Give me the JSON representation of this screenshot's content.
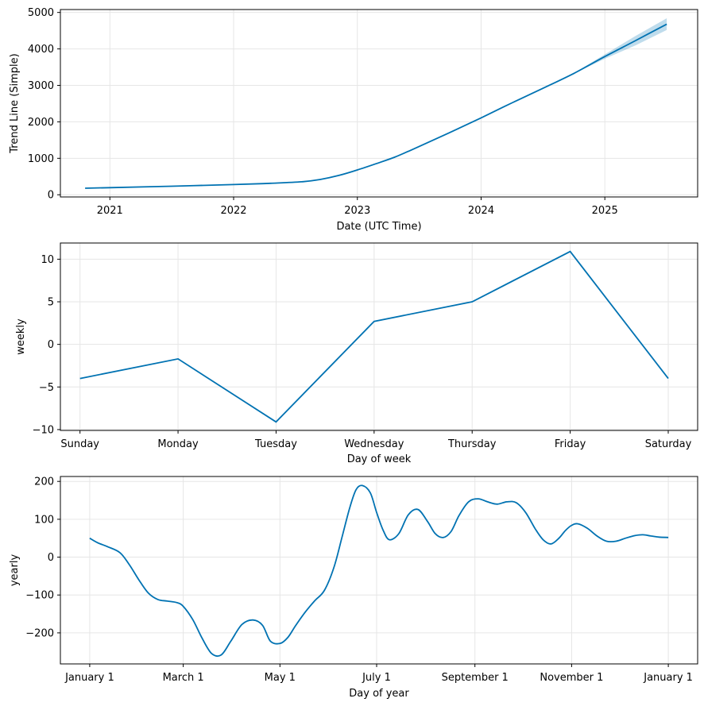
{
  "chart_data": [
    {
      "type": "line",
      "ylabel": "Trend Line (Simple)",
      "xlabel": "Date (UTC Time)",
      "x_tick_labels": [
        "2021",
        "2022",
        "2023",
        "2024",
        "2025"
      ],
      "x_ticks": [
        2021.0,
        2022.0,
        2023.0,
        2024.0,
        2025.0
      ],
      "y_tick_labels": [
        "0",
        "1000",
        "2000",
        "3000",
        "4000",
        "5000"
      ],
      "y_ticks": [
        0,
        1000,
        2000,
        3000,
        4000,
        5000
      ],
      "xlim": [
        2020.6,
        2025.75
      ],
      "ylim": [
        -60,
        5080
      ],
      "grid": true,
      "series": [
        {
          "x": [
            2020.8,
            2021.0,
            2021.5,
            2022.0,
            2022.3,
            2022.55,
            2022.7,
            2022.85,
            2023.0,
            2023.15,
            2023.3,
            2023.45,
            2023.6,
            2023.8,
            2024.0,
            2024.25,
            2024.5,
            2024.75,
            2025.0,
            2025.25,
            2025.5
          ],
          "y": [
            180,
            195,
            235,
            280,
            315,
            355,
            420,
            530,
            680,
            850,
            1030,
            1250,
            1480,
            1790,
            2110,
            2520,
            2920,
            3330,
            3790,
            4230,
            4680
          ]
        }
      ],
      "uncertainty": {
        "x": [
          2024.75,
          2025.0,
          2025.25,
          2025.5
        ],
        "lower": [
          3320,
          3730,
          4100,
          4520
        ],
        "upper": [
          3340,
          3850,
          4360,
          4840
        ]
      }
    },
    {
      "type": "line",
      "ylabel": "weekly",
      "xlabel": "Day of week",
      "categories": [
        "Sunday",
        "Monday",
        "Tuesday",
        "Wednesday",
        "Thursday",
        "Friday",
        "Saturday"
      ],
      "values": [
        -4.0,
        -1.7,
        -9.1,
        2.7,
        5.0,
        10.9,
        -4.0
      ],
      "y_tick_labels": [
        "−10",
        "−5",
        "0",
        "5",
        "10"
      ],
      "y_ticks": [
        -10,
        -5,
        0,
        5,
        10
      ],
      "ylim": [
        -10.1,
        11.9
      ],
      "grid": true
    },
    {
      "type": "line",
      "ylabel": "yearly",
      "xlabel": "Day of year",
      "x_tick_labels": [
        "January 1",
        "March 1",
        "May 1",
        "July 1",
        "September 1",
        "November 1",
        "January 1"
      ],
      "x_ticks": [
        1,
        60,
        121,
        182,
        244,
        305,
        366
      ],
      "xlim": [
        -17.5,
        384.5
      ],
      "y_tick_labels": [
        "−200",
        "−100",
        "0",
        "100",
        "200"
      ],
      "y_ticks": [
        -200,
        -100,
        0,
        100,
        200
      ],
      "ylim": [
        -282,
        213
      ],
      "grid": true,
      "series": [
        {
          "x": [
            1,
            6,
            12,
            20,
            26,
            32,
            38,
            44,
            50,
            56,
            60,
            66,
            72,
            78,
            84,
            90,
            97,
            104,
            110,
            115,
            121,
            126,
            131,
            137,
            143,
            149,
            155,
            160,
            165,
            169,
            173,
            178,
            182,
            186,
            190,
            196,
            202,
            208,
            214,
            219,
            224,
            229,
            234,
            240,
            246,
            252,
            258,
            264,
            270,
            276,
            282,
            287,
            292,
            297,
            301,
            305,
            309,
            315,
            321,
            327,
            333,
            339,
            345,
            350,
            355,
            360,
            366
          ],
          "y": [
            50,
            38,
            28,
            12,
            -20,
            -60,
            -95,
            -112,
            -116,
            -120,
            -130,
            -165,
            -215,
            -255,
            -258,
            -222,
            -178,
            -166,
            -180,
            -222,
            -228,
            -212,
            -180,
            -145,
            -115,
            -88,
            -28,
            50,
            130,
            178,
            189,
            170,
            118,
            72,
            46,
            62,
            112,
            126,
            95,
            62,
            52,
            68,
            110,
            146,
            154,
            146,
            140,
            146,
            144,
            118,
            75,
            46,
            35,
            50,
            70,
            84,
            88,
            76,
            56,
            42,
            42,
            50,
            57,
            59,
            56,
            53,
            52
          ]
        }
      ]
    }
  ]
}
